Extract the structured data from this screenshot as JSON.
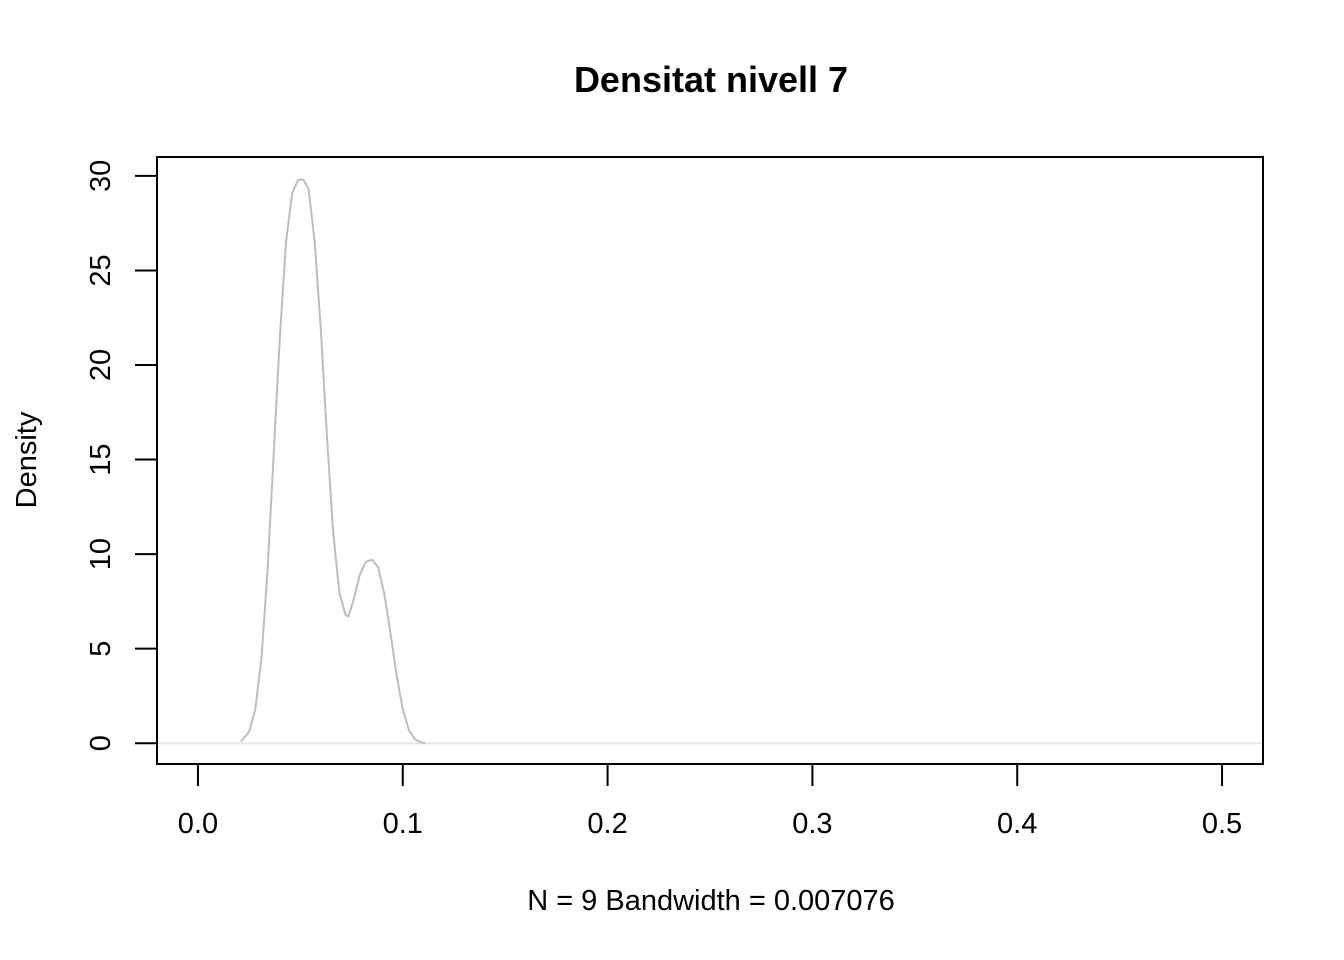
{
  "chart_data": {
    "type": "line",
    "title": "Densitat nivell 7",
    "xlabel": "N = 9   Bandwidth = 0.007076",
    "ylabel": "Density",
    "xlim": [
      -0.02,
      0.52
    ],
    "ylim": [
      -1.1,
      31
    ],
    "x_ticks": [
      "0.0",
      "0.1",
      "0.2",
      "0.3",
      "0.4",
      "0.5"
    ],
    "y_ticks": [
      "0",
      "5",
      "10",
      "15",
      "20",
      "25",
      "30"
    ],
    "x_tick_values": [
      0.0,
      0.1,
      0.2,
      0.3,
      0.4,
      0.5
    ],
    "y_tick_values": [
      0,
      5,
      10,
      15,
      20,
      25,
      30
    ],
    "grid": false,
    "baseline": 0,
    "line_color": "#bebebe",
    "baseline_color": "#e5e5e5",
    "series": [
      {
        "x": [
          0.021,
          0.025,
          0.028,
          0.031,
          0.034,
          0.037,
          0.04,
          0.043,
          0.046,
          0.049,
          0.0515,
          0.054,
          0.057,
          0.06,
          0.063,
          0.066,
          0.069,
          0.072,
          0.0735,
          0.076,
          0.079,
          0.082,
          0.085,
          0.088,
          0.091,
          0.094,
          0.097,
          0.1,
          0.103,
          0.106,
          0.109,
          0.111
        ],
        "y": [
          0.1,
          0.6,
          1.8,
          4.5,
          9.2,
          15.3,
          21.5,
          26.5,
          29.1,
          29.8,
          29.8,
          29.3,
          26.5,
          21.8,
          16.2,
          11.2,
          8.0,
          6.8,
          6.7,
          7.6,
          8.9,
          9.6,
          9.7,
          9.3,
          7.9,
          5.8,
          3.6,
          1.8,
          0.7,
          0.2,
          0.05,
          0.0
        ]
      }
    ]
  }
}
